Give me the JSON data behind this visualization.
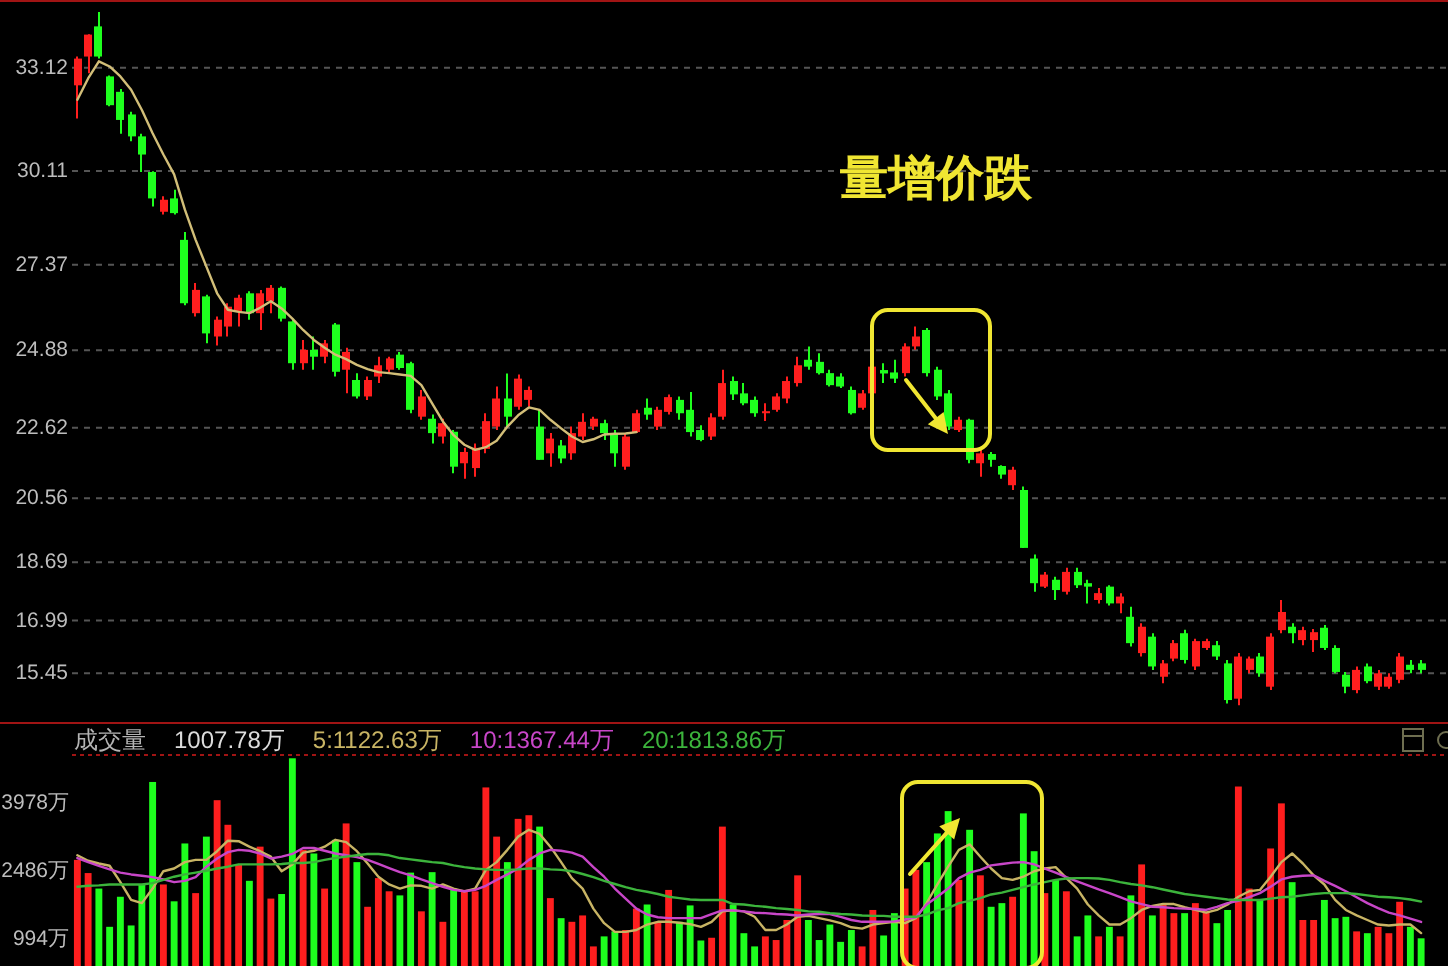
{
  "chart_data": [
    {
      "type": "candlestick",
      "categories": [
        null,
        null,
        null,
        null,
        null,
        null,
        null,
        null,
        null,
        null,
        null,
        null,
        null,
        null,
        null,
        null,
        null,
        null,
        null,
        null,
        null,
        null,
        null,
        null,
        null,
        null,
        null,
        null,
        null,
        null,
        null,
        null,
        null,
        null,
        null,
        null,
        null,
        null,
        null,
        null,
        null,
        null,
        null,
        null,
        null,
        null,
        null,
        null,
        null,
        null,
        null,
        null,
        null,
        null,
        null,
        null,
        null,
        null,
        null,
        null,
        null,
        null,
        null,
        null,
        null,
        null,
        null,
        null,
        null,
        null,
        null,
        null,
        null,
        null,
        null,
        null,
        null,
        null,
        null,
        null,
        null,
        null,
        null,
        null,
        null,
        null,
        null,
        null,
        null,
        null,
        null,
        null,
        null,
        null,
        null,
        null,
        null,
        null,
        null,
        null,
        null,
        null,
        null,
        null,
        null,
        null,
        null,
        null,
        null,
        null,
        null,
        null,
        null,
        null,
        null,
        null,
        null,
        null,
        null,
        null,
        null,
        null,
        null,
        null,
        null,
        null,
        null,
        null
      ],
      "ohlc": [
        [
          32.61,
          33.45,
          31.64,
          33.39
        ],
        [
          33.45,
          34.1,
          32.96,
          34.09
        ],
        [
          34.33,
          34.75,
          33.39,
          33.45
        ],
        [
          32.87,
          32.9,
          32.0,
          32.03
        ],
        [
          32.42,
          32.5,
          31.2,
          31.6
        ],
        [
          31.76,
          31.84,
          30.98,
          31.12
        ],
        [
          31.12,
          31.2,
          30.08,
          30.59
        ],
        [
          30.08,
          30.1,
          29.07,
          29.31
        ],
        [
          28.92,
          29.37,
          28.84,
          29.27
        ],
        [
          29.31,
          29.56,
          28.84,
          28.88
        ],
        [
          28.1,
          28.33,
          26.19,
          26.25
        ],
        [
          25.96,
          26.84,
          25.86,
          26.64
        ],
        [
          26.45,
          26.5,
          25.08,
          25.37
        ],
        [
          25.28,
          25.86,
          25.02,
          25.77
        ],
        [
          25.57,
          26.25,
          25.28,
          26.15
        ],
        [
          26.0,
          26.5,
          25.57,
          26.41
        ],
        [
          26.54,
          26.6,
          25.77,
          25.96
        ],
        [
          25.96,
          26.64,
          25.47,
          26.54
        ],
        [
          26.31,
          26.78,
          25.96,
          26.7
        ],
        [
          26.7,
          26.74,
          25.72,
          25.8
        ],
        [
          25.72,
          25.8,
          24.31,
          24.5
        ],
        [
          24.5,
          25.18,
          24.31,
          24.89
        ],
        [
          24.89,
          25.28,
          24.31,
          24.69
        ],
        [
          24.69,
          25.18,
          24.5,
          25.08
        ],
        [
          25.63,
          25.67,
          24.11,
          24.25
        ],
        [
          24.31,
          24.95,
          23.62,
          24.83
        ],
        [
          24.01,
          24.21,
          23.47,
          23.53
        ],
        [
          23.53,
          24.11,
          23.43,
          24.01
        ],
        [
          24.11,
          24.69,
          23.92,
          24.44
        ],
        [
          24.31,
          24.69,
          24.21,
          24.64
        ],
        [
          24.75,
          24.83,
          24.31,
          24.36
        ],
        [
          24.5,
          24.54,
          23.04,
          23.14
        ],
        [
          22.94,
          23.72,
          22.85,
          23.53
        ],
        [
          22.88,
          23.0,
          22.16,
          22.46
        ],
        [
          22.36,
          22.88,
          22.16,
          22.75
        ],
        [
          22.5,
          22.55,
          21.29,
          21.48
        ],
        [
          21.58,
          22.03,
          21.13,
          21.91
        ],
        [
          21.44,
          22.16,
          21.19,
          22.03
        ],
        [
          22.0,
          23.04,
          21.87,
          22.81
        ],
        [
          22.65,
          23.82,
          22.55,
          23.47
        ],
        [
          23.47,
          24.2,
          22.65,
          22.94
        ],
        [
          23.23,
          24.17,
          23.14,
          24.05
        ],
        [
          23.43,
          23.82,
          23.23,
          23.72
        ],
        [
          22.65,
          23.14,
          21.68,
          21.68
        ],
        [
          21.87,
          22.46,
          21.48,
          22.3
        ],
        [
          22.1,
          22.26,
          21.58,
          21.72
        ],
        [
          21.87,
          22.65,
          21.68,
          22.46
        ],
        [
          22.36,
          23.04,
          22.26,
          22.79
        ],
        [
          22.65,
          22.94,
          22.55,
          22.88
        ],
        [
          22.75,
          22.85,
          22.26,
          22.46
        ],
        [
          22.46,
          22.55,
          21.48,
          21.87
        ],
        [
          21.48,
          22.46,
          21.39,
          22.36
        ],
        [
          22.49,
          23.14,
          22.46,
          23.04
        ],
        [
          23.2,
          23.47,
          22.85,
          23.0
        ],
        [
          22.65,
          23.23,
          22.55,
          23.14
        ],
        [
          23.08,
          23.59,
          23.0,
          23.51
        ],
        [
          23.43,
          23.53,
          22.85,
          23.04
        ],
        [
          23.14,
          23.66,
          22.36,
          22.49
        ],
        [
          22.55,
          22.69,
          22.22,
          22.26
        ],
        [
          22.36,
          23.04,
          22.26,
          22.92
        ],
        [
          22.94,
          24.31,
          22.85,
          23.92
        ],
        [
          23.98,
          24.11,
          23.43,
          23.59
        ],
        [
          23.62,
          23.92,
          23.27,
          23.33
        ],
        [
          23.43,
          23.53,
          22.94,
          23.04
        ],
        [
          23.04,
          23.33,
          22.81,
          23.1
        ],
        [
          23.14,
          23.62,
          23.08,
          23.53
        ],
        [
          23.47,
          24.11,
          23.33,
          23.98
        ],
        [
          23.92,
          24.69,
          23.82,
          24.44
        ],
        [
          24.6,
          24.99,
          24.31,
          24.4
        ],
        [
          24.54,
          24.79,
          24.17,
          24.21
        ],
        [
          24.21,
          24.31,
          23.82,
          23.86
        ],
        [
          24.11,
          24.21,
          23.78,
          23.82
        ],
        [
          23.72,
          23.82,
          23.0,
          23.04
        ],
        [
          23.2,
          23.72,
          23.14,
          23.62
        ],
        [
          23.62,
          24.5,
          23.53,
          24.4
        ],
        [
          24.3,
          24.5,
          23.92,
          24.2
        ],
        [
          24.23,
          24.6,
          23.92,
          24.05
        ],
        [
          24.21,
          25.08,
          24.11,
          24.99
        ],
        [
          24.99,
          25.57,
          24.89,
          25.28
        ],
        [
          25.47,
          25.53,
          24.11,
          24.21
        ],
        [
          24.31,
          24.4,
          23.43,
          23.53
        ],
        [
          23.62,
          23.72,
          22.55,
          22.65
        ],
        [
          22.55,
          22.94,
          22.49,
          22.85
        ],
        [
          22.85,
          22.88,
          21.58,
          21.68
        ],
        [
          21.58,
          21.97,
          21.19,
          21.87
        ],
        [
          21.85,
          21.91,
          21.48,
          21.68
        ],
        [
          21.5,
          21.52,
          21.13,
          21.25
        ],
        [
          20.94,
          21.48,
          20.8,
          21.39
        ],
        [
          20.8,
          20.9,
          19.11,
          19.11
        ],
        [
          18.8,
          18.92,
          17.83,
          18.08
        ],
        [
          17.98,
          18.41,
          17.94,
          18.33
        ],
        [
          18.18,
          18.27,
          17.59,
          17.88
        ],
        [
          17.83,
          18.53,
          17.75,
          18.41
        ],
        [
          18.41,
          18.53,
          17.94,
          18.02
        ],
        [
          18.08,
          18.18,
          17.49,
          17.98
        ],
        [
          17.59,
          17.94,
          17.49,
          17.79
        ],
        [
          17.98,
          18.02,
          17.43,
          17.49
        ],
        [
          17.49,
          17.79,
          17.2,
          17.69
        ],
        [
          17.1,
          17.39,
          16.23,
          16.33
        ],
        [
          16.04,
          16.91,
          15.94,
          16.81
        ],
        [
          16.52,
          16.62,
          15.55,
          15.65
        ],
        [
          15.35,
          15.84,
          15.16,
          15.74
        ],
        [
          15.88,
          16.42,
          15.8,
          16.33
        ],
        [
          16.62,
          16.72,
          15.74,
          15.84
        ],
        [
          15.65,
          16.46,
          15.55,
          16.39
        ],
        [
          16.19,
          16.46,
          16.13,
          16.39
        ],
        [
          16.27,
          16.39,
          15.84,
          15.94
        ],
        [
          15.74,
          15.84,
          14.57,
          14.67
        ],
        [
          14.71,
          16.04,
          14.52,
          15.94
        ],
        [
          15.55,
          15.94,
          15.45,
          15.88
        ],
        [
          15.94,
          16.04,
          15.35,
          15.45
        ],
        [
          15.06,
          16.62,
          14.96,
          16.52
        ],
        [
          16.71,
          17.59,
          16.62,
          17.24
        ],
        [
          16.81,
          16.91,
          16.33,
          16.62
        ],
        [
          16.42,
          16.81,
          16.27,
          16.71
        ],
        [
          16.42,
          16.74,
          16.07,
          16.65
        ],
        [
          16.78,
          16.86,
          16.13,
          16.19
        ],
        [
          16.19,
          16.27,
          15.45,
          15.49
        ],
        [
          15.41,
          15.49,
          14.87,
          15.06
        ],
        [
          14.96,
          15.65,
          14.87,
          15.55
        ],
        [
          15.65,
          15.74,
          15.16,
          15.22
        ],
        [
          15.06,
          15.55,
          14.96,
          15.45
        ],
        [
          15.06,
          15.45,
          15.0,
          15.35
        ],
        [
          15.26,
          16.04,
          15.16,
          15.94
        ],
        [
          15.7,
          15.84,
          15.45,
          15.55
        ],
        [
          15.74,
          15.84,
          15.45,
          15.55
        ],
        null,
        null
      ],
      "colors": [
        "#ff1e1e",
        "#ff1e1e",
        "#1eff1e",
        "#1eff1e",
        "#1eff1e",
        "#1eff1e",
        "#1eff1e",
        "#1eff1e",
        "#ff1e1e",
        "#1eff1e",
        "#1eff1e",
        "#ff1e1e",
        "#1eff1e",
        "#ff1e1e",
        "#ff1e1e",
        "#ff1e1e",
        "#1eff1e",
        "#ff1e1e",
        "#ff1e1e",
        "#1eff1e",
        "#1eff1e",
        "#ff1e1e",
        "#1eff1e",
        "#ff1e1e",
        "#1eff1e",
        "#ff1e1e",
        "#1eff1e",
        "#ff1e1e",
        "#ff1e1e",
        "#ff1e1e",
        "#1eff1e",
        "#1eff1e",
        "#ff1e1e",
        "#1eff1e",
        "#ff1e1e",
        "#1eff1e",
        "#ff1e1e",
        "#ff1e1e",
        "#ff1e1e",
        "#ff1e1e",
        "#1eff1e",
        "#ff1e1e",
        "#ff1e1e",
        "#1eff1e",
        "#ff1e1e",
        "#1eff1e",
        "#ff1e1e",
        "#ff1e1e",
        "#ff1e1e",
        "#1eff1e",
        "#1eff1e",
        "#ff1e1e",
        "#ff1e1e",
        "#1eff1e",
        "#ff1e1e",
        "#ff1e1e",
        "#1eff1e",
        "#1eff1e",
        "#1eff1e",
        "#ff1e1e",
        "#ff1e1e",
        "#1eff1e",
        "#1eff1e",
        "#1eff1e",
        "#ff1e1e",
        "#ff1e1e",
        "#ff1e1e",
        "#ff1e1e",
        "#1eff1e",
        "#1eff1e",
        "#1eff1e",
        "#1eff1e",
        "#1eff1e",
        "#ff1e1e",
        "#ff1e1e",
        "#1eff1e",
        "#1eff1e",
        "#ff1e1e",
        "#ff1e1e",
        "#1eff1e",
        "#1eff1e",
        "#1eff1e",
        "#ff1e1e",
        "#1eff1e",
        "#ff1e1e",
        "#1eff1e",
        "#1eff1e",
        "#ff1e1e",
        "#1eff1e",
        "#1eff1e",
        "#ff1e1e",
        "#1eff1e",
        "#ff1e1e",
        "#1eff1e",
        "#1eff1e",
        "#ff1e1e",
        "#1eff1e",
        "#ff1e1e",
        "#1eff1e",
        "#ff1e1e",
        "#1eff1e",
        "#ff1e1e",
        "#ff1e1e",
        "#1eff1e",
        "#ff1e1e",
        "#ff1e1e",
        "#1eff1e",
        "#1eff1e",
        "#ff1e1e",
        "#ff1e1e",
        "#1eff1e",
        "#ff1e1e",
        "#ff1e1e",
        "#1eff1e",
        "#ff1e1e",
        "#ff1e1e",
        "#1eff1e",
        "#1eff1e",
        "#1eff1e",
        "#ff1e1e",
        "#1eff1e",
        "#ff1e1e",
        "#ff1e1e",
        "#ff1e1e",
        "#1eff1e",
        "#1eff1e",
        null,
        null
      ],
      "series": [
        {
          "type": "line",
          "color": "#d2be78",
          "values": [
            32.19,
            32.81,
            33.31,
            33.16,
            32.87,
            32.48,
            31.89,
            31.21,
            30.59,
            30.01,
            28.98,
            28.1,
            27.32,
            26.54,
            26.06,
            26.0,
            25.96,
            26.12,
            26.31,
            26.1,
            25.8,
            25.47,
            25.18,
            24.95,
            24.75,
            24.62,
            24.45,
            24.33,
            24.24,
            24.21,
            24.17,
            24.13,
            23.86,
            23.33,
            22.8,
            22.4,
            22.12,
            21.97,
            22.05,
            22.24,
            22.65,
            22.98,
            23.21,
            23.14,
            22.85,
            22.6,
            22.36,
            22.2,
            22.28,
            22.42,
            22.44,
            22.45,
            22.49,
            null,
            null,
            null,
            null,
            null,
            null,
            null,
            null,
            null,
            null,
            null,
            null,
            null,
            null,
            null,
            null,
            null,
            null,
            null,
            null,
            null,
            null,
            null,
            null,
            null,
            null,
            null,
            null,
            null,
            null,
            null,
            null,
            null,
            null,
            null,
            null,
            null,
            null,
            null,
            null,
            null,
            null,
            null,
            null,
            null,
            null,
            null,
            null,
            null,
            null,
            null,
            null,
            null,
            null,
            null,
            null,
            null,
            null,
            null,
            null,
            null,
            null,
            null,
            null,
            null,
            null,
            null,
            null,
            null,
            null,
            null,
            null,
            null,
            null,
            null
          ]
        }
      ],
      "ylim": [
        14.0,
        35.1
      ],
      "yticks": [
        33.12,
        30.11,
        27.37,
        24.88,
        22.62,
        20.56,
        18.69,
        16.99,
        15.45
      ],
      "grid": "y",
      "tick_labels": "y",
      "annotations": [
        "量增价跌"
      ]
    },
    {
      "type": "bar",
      "title": "成交量",
      "categories": [
        null,
        null,
        null,
        null,
        null,
        null,
        null,
        null,
        null,
        null,
        null,
        null,
        null,
        null,
        null,
        null,
        null,
        null,
        null,
        null,
        null,
        null,
        null,
        null,
        null,
        null,
        null,
        null,
        null,
        null,
        null,
        null,
        null,
        null,
        null,
        null,
        null,
        null,
        null,
        null,
        null,
        null,
        null,
        null,
        null,
        null,
        null,
        null,
        null,
        null,
        null,
        null,
        null,
        null,
        null,
        null,
        null,
        null,
        null,
        null,
        null,
        null,
        null,
        null,
        null,
        null,
        null,
        null,
        null,
        null,
        null,
        null,
        null,
        null,
        null,
        null,
        null,
        null,
        null,
        null,
        null,
        null,
        null,
        null,
        null,
        null,
        null,
        null,
        null,
        null,
        null,
        null,
        null,
        null,
        null,
        null,
        null,
        null,
        null,
        null,
        null,
        null,
        null,
        null,
        null,
        null,
        null,
        null,
        null,
        null,
        null,
        null,
        null,
        null,
        null,
        null,
        null,
        null,
        null,
        null,
        null,
        null,
        null,
        null,
        null,
        null,
        null,
        null
      ],
      "series": [
        {
          "values": [
            2730,
            2440,
            2100,
            1260,
            1920,
            1290,
            2190,
            4440,
            2190,
            1820,
            3090,
            2000,
            3240,
            4040,
            3500,
            2630,
            2270,
            3020,
            1880,
            1980,
            4960,
            2950,
            2870,
            2100,
            3170,
            3530,
            2680,
            1700,
            2330,
            2040,
            1950,
            2450,
            1600,
            2460,
            1370,
            2100,
            2070,
            2040,
            4320,
            3240,
            2680,
            3630,
            3710,
            3460,
            1890,
            1450,
            1370,
            1510,
            830,
            1050,
            1160,
            1190,
            1660,
            1750,
            1370,
            2070,
            1370,
            1730,
            960,
            1020,
            3460,
            1750,
            1120,
            830,
            1050,
            970,
            1410,
            2390,
            1410,
            970,
            1310,
            930,
            1190,
            830,
            1630,
            1070,
            1560,
            2100,
            2510,
            2680,
            3310,
            3800,
            2290,
            3390,
            2390,
            1700,
            1780,
            1920,
            3750,
            2920,
            2000,
            2290,
            2040,
            1050,
            1510,
            1050,
            1260,
            1050,
            1950,
            2630,
            1510,
            1750,
            1560,
            1560,
            1780,
            1600,
            1340,
            1630,
            4340,
            2100,
            1850,
            2980,
            3970,
            2240,
            1410,
            1410,
            1850,
            1450,
            1480,
            1160,
            1120,
            1260,
            1120,
            1810,
            1260,
            1007.78,
            null,
            null
          ],
          "colors": [
            "#ff1e1e",
            "#ff1e1e",
            "#1eff1e",
            "#1eff1e",
            "#1eff1e",
            "#1eff1e",
            "#1eff1e",
            "#1eff1e",
            "#ff1e1e",
            "#1eff1e",
            "#1eff1e",
            "#ff1e1e",
            "#1eff1e",
            "#ff1e1e",
            "#ff1e1e",
            "#ff1e1e",
            "#1eff1e",
            "#ff1e1e",
            "#ff1e1e",
            "#1eff1e",
            "#1eff1e",
            "#ff1e1e",
            "#1eff1e",
            "#ff1e1e",
            "#1eff1e",
            "#ff1e1e",
            "#1eff1e",
            "#ff1e1e",
            "#ff1e1e",
            "#ff1e1e",
            "#1eff1e",
            "#1eff1e",
            "#ff1e1e",
            "#1eff1e",
            "#ff1e1e",
            "#1eff1e",
            "#ff1e1e",
            "#ff1e1e",
            "#ff1e1e",
            "#ff1e1e",
            "#1eff1e",
            "#ff1e1e",
            "#ff1e1e",
            "#1eff1e",
            "#ff1e1e",
            "#1eff1e",
            "#ff1e1e",
            "#ff1e1e",
            "#ff1e1e",
            "#1eff1e",
            "#1eff1e",
            "#ff1e1e",
            "#ff1e1e",
            "#1eff1e",
            "#ff1e1e",
            "#ff1e1e",
            "#1eff1e",
            "#1eff1e",
            "#1eff1e",
            "#ff1e1e",
            "#ff1e1e",
            "#1eff1e",
            "#1eff1e",
            "#1eff1e",
            "#ff1e1e",
            "#ff1e1e",
            "#ff1e1e",
            "#ff1e1e",
            "#1eff1e",
            "#1eff1e",
            "#1eff1e",
            "#1eff1e",
            "#1eff1e",
            "#ff1e1e",
            "#ff1e1e",
            "#1eff1e",
            "#1eff1e",
            "#ff1e1e",
            "#ff1e1e",
            "#1eff1e",
            "#1eff1e",
            "#1eff1e",
            "#ff1e1e",
            "#1eff1e",
            "#ff1e1e",
            "#1eff1e",
            "#1eff1e",
            "#ff1e1e",
            "#1eff1e",
            "#1eff1e",
            "#ff1e1e",
            "#1eff1e",
            "#ff1e1e",
            "#1eff1e",
            "#1eff1e",
            "#ff1e1e",
            "#1eff1e",
            "#ff1e1e",
            "#1eff1e",
            "#ff1e1e",
            "#1eff1e",
            "#ff1e1e",
            "#ff1e1e",
            "#1eff1e",
            "#ff1e1e",
            "#ff1e1e",
            "#1eff1e",
            "#1eff1e",
            "#ff1e1e",
            "#ff1e1e",
            "#1eff1e",
            "#ff1e1e",
            "#ff1e1e",
            "#1eff1e",
            "#ff1e1e",
            "#ff1e1e",
            "#1eff1e",
            "#1eff1e",
            "#1eff1e",
            "#ff1e1e",
            "#1eff1e",
            "#ff1e1e",
            "#ff1e1e",
            "#ff1e1e",
            "#1eff1e",
            "#1eff1e",
            null,
            null
          ]
        },
        {
          "type": "line",
          "name": "5:1122.63万",
          "color": "#c8b464",
          "values": [
            2830,
            2710,
            2650,
            2600,
            2240,
            1850,
            1780,
            2100,
            2480,
            2540,
            2680,
            2730,
            2730,
            2920,
            3150,
            3140,
            3020,
            2920,
            2800,
            2480,
            2630,
            2890,
            2930,
            3020,
            3170,
            3120,
            2920,
            2650,
            2360,
            2190,
            2100,
            2170,
            2160,
            2100,
            2190,
            2100,
            2040,
            2100,
            2510,
            2680,
            2950,
            3240,
            3390,
            3300,
            3020,
            2680,
            2330,
            2100,
            1660,
            1340,
            1150,
            1150,
            1190,
            1310,
            1370,
            1370,
            1350,
            1320,
            1260,
            1370,
            1600,
            1620,
            1600,
            1480,
            1190,
            1190,
            1310,
            1480,
            1500,
            1450,
            1400,
            1340,
            1250,
            1220,
            1310,
            1340,
            1370,
            1340,
            1450,
            1780,
            2190,
            2580,
            2950,
            3070,
            2800,
            2540,
            2330,
            2290,
            2360,
            2480,
            2540,
            2570,
            2330,
            2100,
            1750,
            1510,
            1310,
            1310,
            1450,
            1630,
            1720,
            1760,
            1760,
            1690,
            1630,
            1570,
            1630,
            1750,
            1920,
            2040,
            2070,
            2360,
            2680,
            2870,
            2650,
            2390,
            2190,
            1850,
            1630,
            1510,
            1410,
            1310,
            1290,
            1310,
            1310,
            1122.63,
            null,
            null
          ]
        },
        {
          "type": "line",
          "name": "10:1367.44万",
          "color": "#c846c8",
          "values": [
            2770,
            2680,
            2600,
            2520,
            2450,
            2410,
            2380,
            2350,
            2300,
            2240,
            2270,
            2350,
            2580,
            2760,
            2900,
            2950,
            2930,
            2870,
            2760,
            2800,
            2860,
            2990,
            2990,
            2930,
            2870,
            2830,
            2790,
            2730,
            2640,
            2550,
            2460,
            2390,
            2300,
            2220,
            2140,
            2070,
            2040,
            2070,
            2160,
            2290,
            2410,
            2540,
            2730,
            2870,
            2950,
            2930,
            2890,
            2800,
            2570,
            2360,
            2100,
            1880,
            1660,
            1530,
            1470,
            1450,
            1450,
            1450,
            1450,
            1540,
            1620,
            1620,
            1600,
            1570,
            1560,
            1540,
            1530,
            1510,
            1530,
            1540,
            1540,
            1480,
            1410,
            1370,
            1370,
            1370,
            1380,
            1420,
            1470,
            1750,
            1920,
            2100,
            2330,
            2450,
            2510,
            2610,
            2640,
            2670,
            2680,
            2630,
            2540,
            2450,
            2350,
            2260,
            2170,
            2080,
            2000,
            1910,
            1820,
            1760,
            1700,
            1690,
            1670,
            1660,
            1650,
            1630,
            1700,
            1780,
            1830,
            1910,
            2000,
            2140,
            2300,
            2360,
            2380,
            2390,
            2270,
            2160,
            2040,
            1910,
            1780,
            1670,
            1570,
            1510,
            1440,
            1367.44,
            null,
            null
          ]
        },
        {
          "type": "line",
          "name": "20:1813.86万",
          "color": "#3cb43c",
          "values": [
            2140,
            2160,
            2170,
            2190,
            2190,
            2190,
            2190,
            2220,
            2290,
            2360,
            2410,
            2450,
            2490,
            2540,
            2580,
            2630,
            2630,
            2630,
            2630,
            2640,
            2660,
            2660,
            2680,
            2730,
            2770,
            2800,
            2830,
            2860,
            2860,
            2830,
            2770,
            2740,
            2710,
            2680,
            2660,
            2610,
            2570,
            2540,
            2520,
            2510,
            2510,
            2520,
            2540,
            2540,
            2520,
            2510,
            2480,
            2420,
            2350,
            2270,
            2200,
            2130,
            2070,
            2030,
            1980,
            1920,
            1890,
            1860,
            1850,
            1850,
            1850,
            1760,
            1750,
            1720,
            1700,
            1670,
            1650,
            1630,
            1600,
            1590,
            1560,
            1540,
            1530,
            1510,
            1500,
            1500,
            1480,
            1480,
            1480,
            1530,
            1620,
            1670,
            1780,
            1830,
            1890,
            1970,
            2010,
            2070,
            2130,
            2190,
            2240,
            2290,
            2320,
            2330,
            2330,
            2320,
            2290,
            2240,
            2200,
            2170,
            2130,
            2080,
            2030,
            1980,
            1950,
            1920,
            1890,
            1860,
            1850,
            1850,
            1850,
            1880,
            1910,
            1920,
            1950,
            1980,
            2000,
            2000,
            2000,
            1980,
            1950,
            1920,
            1910,
            1890,
            1860,
            1813.86,
            null,
            null
          ]
        }
      ],
      "ylim": [
        400,
        5010
      ],
      "yticks": [
        {
          "value": 3978,
          "label": "3978万"
        },
        {
          "value": 2486,
          "label": "2486万"
        },
        {
          "value": 994,
          "label": "994万"
        }
      ],
      "tick_labels": "y",
      "legend": "top left",
      "annotations": [
        "1007.78万"
      ]
    }
  ]
}
